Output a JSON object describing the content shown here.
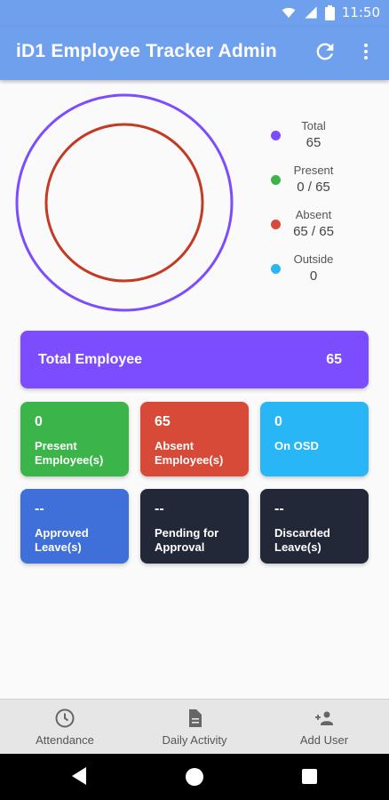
{
  "status_bar": {
    "time": "11:50",
    "icons": [
      "wifi-icon",
      "signal-icon",
      "battery-icon"
    ]
  },
  "app_bar": {
    "title": "iD1 Employee Tracker Admin",
    "actions": [
      "refresh-icon",
      "more-vert-icon"
    ]
  },
  "legend": [
    {
      "label": "Total",
      "value": "65",
      "color": "#7c4dff"
    },
    {
      "label": "Present",
      "value": "0 / 65",
      "color": "#3bb54a"
    },
    {
      "label": "Absent",
      "value": "65 / 65",
      "color": "#d84a38"
    },
    {
      "label": "Outside",
      "value": "0",
      "color": "#29b6f6"
    }
  ],
  "chart_data": {
    "type": "radial",
    "series": [
      {
        "name": "Total",
        "value": 65,
        "max": 65,
        "color": "#7c4dff"
      },
      {
        "name": "Absent",
        "value": 65,
        "max": 65,
        "color": "#c23b22"
      }
    ]
  },
  "total_card": {
    "label": "Total Employee",
    "value": "65",
    "color": "#7c4dff"
  },
  "cards": [
    {
      "value": "0",
      "label": "Present Employee(s)",
      "color": "#3bb54a"
    },
    {
      "value": "65",
      "label": "Absent Employee(s)",
      "color": "#d84a38"
    },
    {
      "value": "0",
      "label": "On OSD",
      "color": "#29b6f6"
    },
    {
      "value": "--",
      "label": "Approved Leave(s)",
      "color": "#3f6fd8"
    },
    {
      "value": "--",
      "label": "Pending for Approval",
      "color": "#222838"
    },
    {
      "value": "--",
      "label": "Discarded Leave(s)",
      "color": "#222838"
    }
  ],
  "bottom_nav": [
    {
      "label": "Attendance",
      "icon": "clock-icon"
    },
    {
      "label": "Daily Activity",
      "icon": "document-icon"
    },
    {
      "label": "Add User",
      "icon": "add-user-icon"
    }
  ]
}
